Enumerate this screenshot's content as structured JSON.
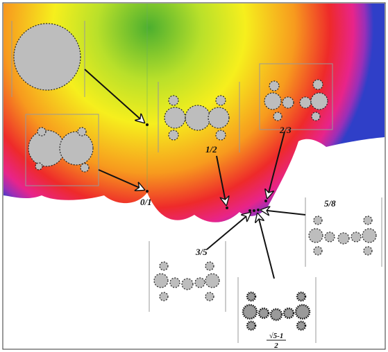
{
  "labels": [
    "0/1",
    "1/2",
    "2/3",
    "3/5",
    "5/8"
  ],
  "golden": {
    "numerator": "√5-1",
    "denominator": "2"
  }
}
